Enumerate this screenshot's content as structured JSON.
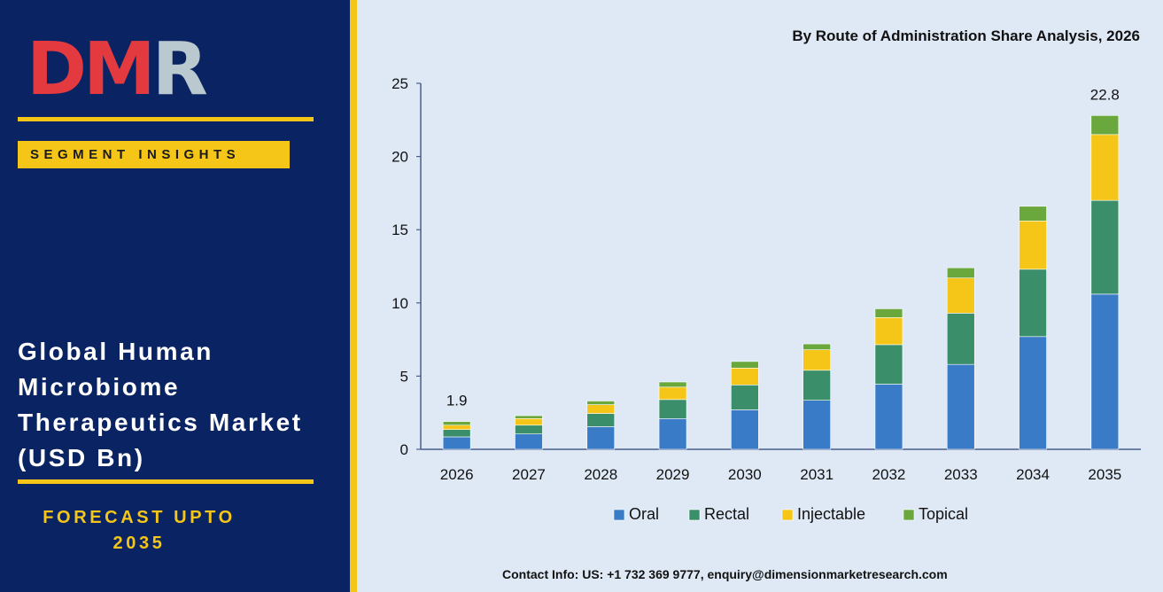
{
  "brand": {
    "logo_d": "D",
    "logo_m": "M",
    "logo_r": "R"
  },
  "sidebar": {
    "badge": "SEGMENT INSIGHTS",
    "title_lines": [
      "Global Human",
      "Microbiome",
      "Therapeutics Market",
      "(USD Bn)"
    ],
    "forecast_lines": [
      "FORECAST UPTO",
      "2035"
    ]
  },
  "contact": "Contact Info: US: +1 732 369 9777, enquiry@dimensionmarketresearch.com",
  "colors": {
    "sidebar_bg": "#0a2463",
    "accent_yellow": "#f5c518",
    "logo_red": "#e23a3f",
    "logo_gray": "#b9c9cf",
    "oral": "#3a7bc8",
    "rectal": "#3a8f6a",
    "injectable": "#f5c518",
    "topical": "#6aa83e"
  },
  "chart_data": {
    "type": "bar",
    "stacked": true,
    "title": "By Route of Administration Share Analysis, 2026",
    "categories": [
      "2026",
      "2027",
      "2028",
      "2029",
      "2030",
      "2031",
      "2032",
      "2033",
      "2034",
      "2035"
    ],
    "series": [
      {
        "name": "Oral",
        "color": "#3a7bc8",
        "values": [
          0.85,
          1.05,
          1.55,
          2.1,
          2.7,
          3.35,
          4.45,
          5.8,
          7.7,
          10.6
        ]
      },
      {
        "name": "Rectal",
        "color": "#3a8f6a",
        "values": [
          0.5,
          0.6,
          0.9,
          1.3,
          1.7,
          2.05,
          2.7,
          3.5,
          4.6,
          6.4
        ]
      },
      {
        "name": "Injectable",
        "color": "#f5c518",
        "values": [
          0.3,
          0.45,
          0.6,
          0.85,
          1.15,
          1.4,
          1.85,
          2.4,
          3.3,
          4.5
        ]
      },
      {
        "name": "Topical",
        "color": "#6aa83e",
        "values": [
          0.25,
          0.2,
          0.25,
          0.35,
          0.45,
          0.4,
          0.6,
          0.7,
          1.0,
          1.3
        ]
      }
    ],
    "data_labels": [
      {
        "category": "2026",
        "text": "1.9"
      },
      {
        "category": "2035",
        "text": "22.8"
      }
    ],
    "ylim": [
      0,
      25
    ],
    "yticks": [
      0,
      5,
      10,
      15,
      20,
      25
    ],
    "grid": false,
    "legend": "bottom"
  }
}
